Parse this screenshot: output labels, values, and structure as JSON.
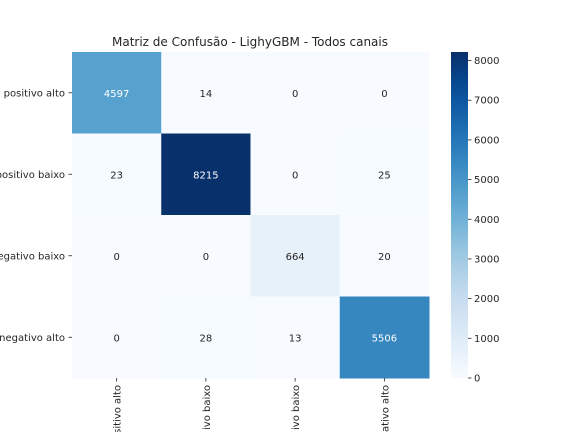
{
  "chart_data": {
    "type": "heatmap",
    "title": "Matriz de Confusão - LighyGBM - Todos canais",
    "xlabel": "",
    "ylabel": "",
    "row_labels": [
      "o positivo alto",
      "positivo baixo",
      "egativo baixo",
      "negativo alto"
    ],
    "col_labels": [
      "sitivo alto",
      "ivo baixo",
      "ivo baixo",
      "ativo alto"
    ],
    "values": [
      [
        4597,
        14,
        0,
        0
      ],
      [
        23,
        8215,
        0,
        25
      ],
      [
        0,
        0,
        664,
        20
      ],
      [
        0,
        28,
        13,
        5506
      ]
    ],
    "colormap": "Blues",
    "colorbar": {
      "min": 0,
      "max": 8215,
      "ticks": [
        0,
        1000,
        2000,
        3000,
        4000,
        5000,
        6000,
        7000,
        8000
      ]
    },
    "colors": {
      "low": "#f7fbff",
      "high": "#08306b",
      "text_dark": "#262626",
      "text_light": "#ffffff"
    }
  }
}
